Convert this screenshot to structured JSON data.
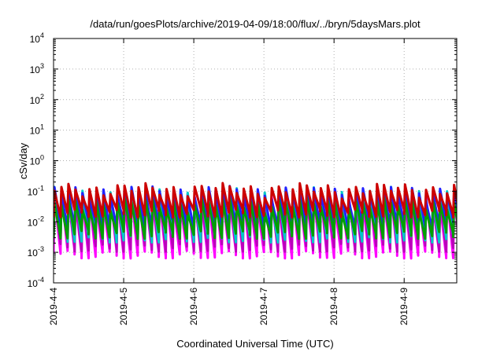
{
  "chart_data": {
    "type": "area",
    "title": "/data/run/goesPlots/archive/2019-04-09/18:00/flux/../bryn/5daysMars.plot",
    "xlabel": "Coordinated Universal Time (UTC)",
    "ylabel": "cSv/day",
    "x_unit": "days",
    "xlim": [
      "2019-04-04",
      "2019-04-09 18:00"
    ],
    "x_ticks": [
      "2019-4-4",
      "2019-4-5",
      "2019-4-6",
      "2019-4-7",
      "2019-4-8",
      "2019-4-9"
    ],
    "y_scale": "log",
    "ylim": [
      0.0001,
      10000
    ],
    "y_ticks": [
      {
        "base": "10",
        "exp": "4",
        "value": 10000
      },
      {
        "base": "10",
        "exp": "3",
        "value": 1000
      },
      {
        "base": "10",
        "exp": "2",
        "value": 100
      },
      {
        "base": "10",
        "exp": "1",
        "value": 10
      },
      {
        "base": "10",
        "exp": "0",
        "value": 1
      },
      {
        "base": "10",
        "exp": "-1",
        "value": 0.1
      },
      {
        "base": "10",
        "exp": "-2",
        "value": 0.01
      },
      {
        "base": "10",
        "exp": "-3",
        "value": 0.001
      },
      {
        "base": "10",
        "exp": "-4",
        "value": 0.0001
      }
    ],
    "grid": true,
    "cycles_per_day": 10,
    "series": [
      {
        "color": "#ff00ff",
        "peak": 0.06,
        "trough": 0.0009
      },
      {
        "color": "#bb00bb",
        "peak": 0.07,
        "trough": 0.0015
      },
      {
        "color": "#00c8c8",
        "peak": 0.09,
        "trough": 0.003
      },
      {
        "color": "#2222ff",
        "peak": 0.1,
        "trough": 0.008
      },
      {
        "color": "#00a000",
        "peak": 0.04,
        "trough": 0.004
      },
      {
        "color": "#cc0000",
        "peak": 0.12,
        "trough": 0.02
      }
    ]
  }
}
